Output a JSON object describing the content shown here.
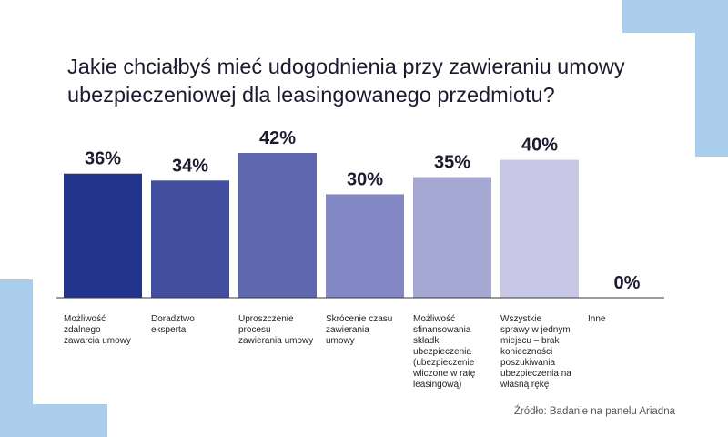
{
  "chart_data": {
    "type": "bar",
    "title": "Jakie chciałbyś mieć udogodnienia przy zawieraniu umowy ubezpieczeniowej dla leasingowanego przedmiotu?",
    "categories": [
      [
        "Możliwość",
        "zdalnego",
        "zawarcia umowy"
      ],
      [
        "Doradztwo",
        "eksperta"
      ],
      [
        "Uproszczenie",
        "procesu",
        "zawierania umowy"
      ],
      [
        "Skrócenie czasu",
        "zawierania",
        "umowy"
      ],
      [
        "Możliwość",
        "sfinansowania",
        "składki",
        "ubezpieczenia",
        "(ubezpieczenie",
        "wliczone w ratę",
        "leasingową)"
      ],
      [
        "Wszystkie",
        "sprawy w jednym",
        "miejscu – brak",
        "konieczności",
        "poszukiwania",
        "ubezpieczenia na",
        "własną rękę"
      ],
      [
        "Inne"
      ]
    ],
    "values": [
      36,
      34,
      42,
      30,
      35,
      40,
      0
    ],
    "value_labels": [
      "36%",
      "34%",
      "42%",
      "30%",
      "35%",
      "40%",
      "0%"
    ],
    "colors": [
      "#22348c",
      "#414f9e",
      "#5f68ae",
      "#8387c3",
      "#a6a8d4",
      "#c8c8e6",
      "#e3e3f1"
    ],
    "ylim": [
      0,
      42
    ],
    "grid": false,
    "legend": "none"
  },
  "source": "Źródło: Badanie na panelu Ariadna"
}
